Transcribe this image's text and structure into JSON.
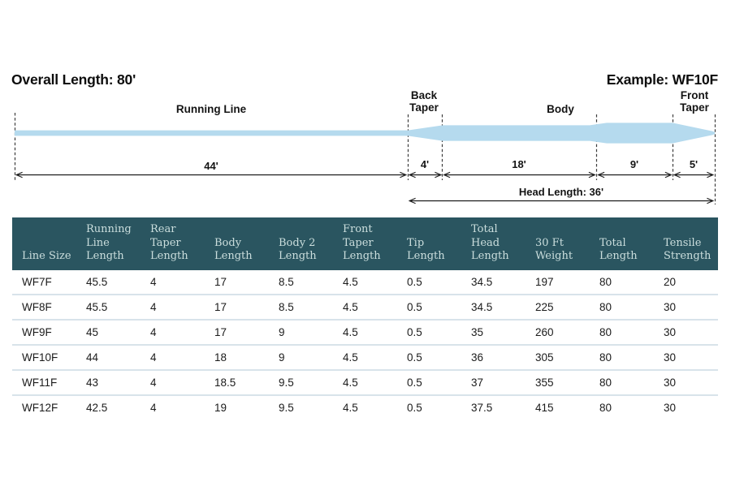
{
  "titles": {
    "overall_length": "Overall Length: 80'",
    "example": "Example: WF10F"
  },
  "diagram": {
    "section_labels": {
      "running_line": "Running Line",
      "back_taper_line1": "Back",
      "back_taper_line2": "Taper",
      "body": "Body",
      "front_taper_line1": "Front",
      "front_taper_line2": "Taper"
    },
    "measurements": {
      "running_line": "44'",
      "back_taper": "4'",
      "body": "18'",
      "body2": "9'",
      "front_taper": "5'",
      "head_length": "Head Length: 36'"
    },
    "colors": {
      "line_fill": "#b5daee"
    }
  },
  "table": {
    "colors": {
      "header_bg": "#2a5560",
      "header_text": "#cbdedd",
      "row_divider": "#d8e3ea"
    },
    "columns": [
      "Line Size",
      "Running Line Length",
      "Rear Taper Length",
      "Body Length",
      "Body 2 Length",
      "Front Taper Length",
      "Tip Length",
      "Total Head Length",
      "30 Ft Weight",
      "Total Length",
      "Tensile Strength"
    ],
    "rows": [
      [
        "WF7F",
        "45.5",
        "4",
        "17",
        "8.5",
        "4.5",
        "0.5",
        "34.5",
        "197",
        "80",
        "20"
      ],
      [
        "WF8F",
        "45.5",
        "4",
        "17",
        "8.5",
        "4.5",
        "0.5",
        "34.5",
        "225",
        "80",
        "30"
      ],
      [
        "WF9F",
        "45",
        "4",
        "17",
        "9",
        "4.5",
        "0.5",
        "35",
        "260",
        "80",
        "30"
      ],
      [
        "WF10F",
        "44",
        "4",
        "18",
        "9",
        "4.5",
        "0.5",
        "36",
        "305",
        "80",
        "30"
      ],
      [
        "WF11F",
        "43",
        "4",
        "18.5",
        "9.5",
        "4.5",
        "0.5",
        "37",
        "355",
        "80",
        "30"
      ],
      [
        "WF12F",
        "42.5",
        "4",
        "19",
        "9.5",
        "4.5",
        "0.5",
        "37.5",
        "415",
        "80",
        "30"
      ]
    ]
  }
}
